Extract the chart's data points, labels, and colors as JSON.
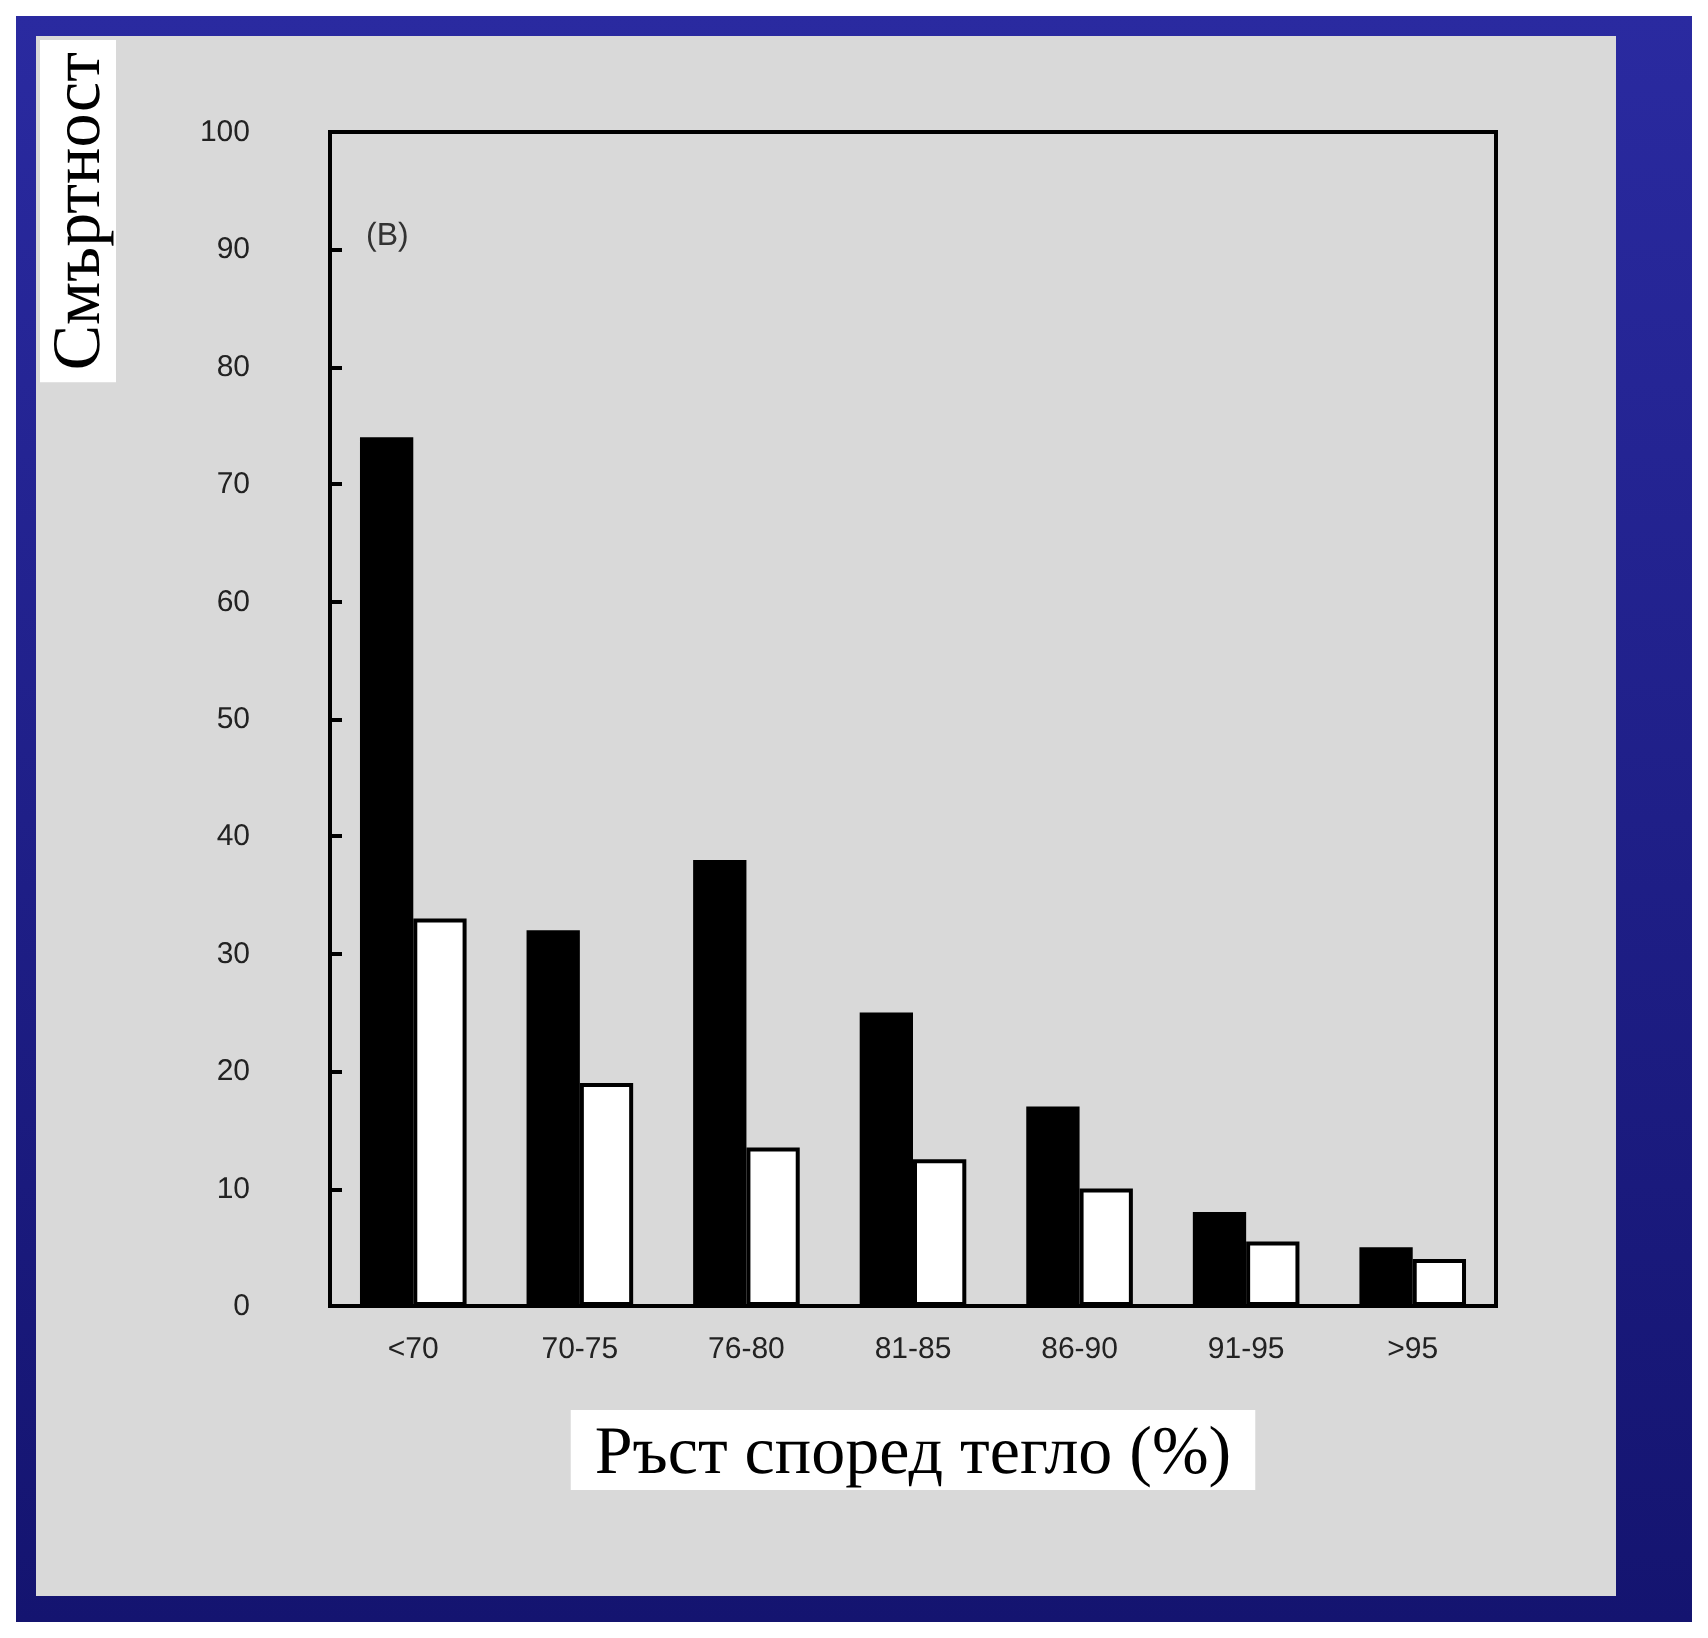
{
  "chart_data": {
    "type": "bar",
    "xlabel": "Ръст според тегло (%)",
    "ylabel": "Смъртност",
    "annotations": [
      "(B)"
    ],
    "categories": [
      "<70",
      "70-75",
      "76-80",
      "81-85",
      "86-90",
      "91-95",
      ">95"
    ],
    "series": [
      {
        "color": "#000000",
        "values": [
          74,
          32,
          38,
          25,
          17,
          8,
          5
        ]
      },
      {
        "color": "#ffffff",
        "values": [
          33,
          19,
          13.5,
          12.5,
          10,
          5.5,
          4
        ]
      }
    ],
    "ylim": [
      0,
      100
    ],
    "yticks": [
      0,
      10,
      20,
      30,
      40,
      50,
      60,
      70,
      80,
      90,
      100
    ],
    "grid": false
  }
}
